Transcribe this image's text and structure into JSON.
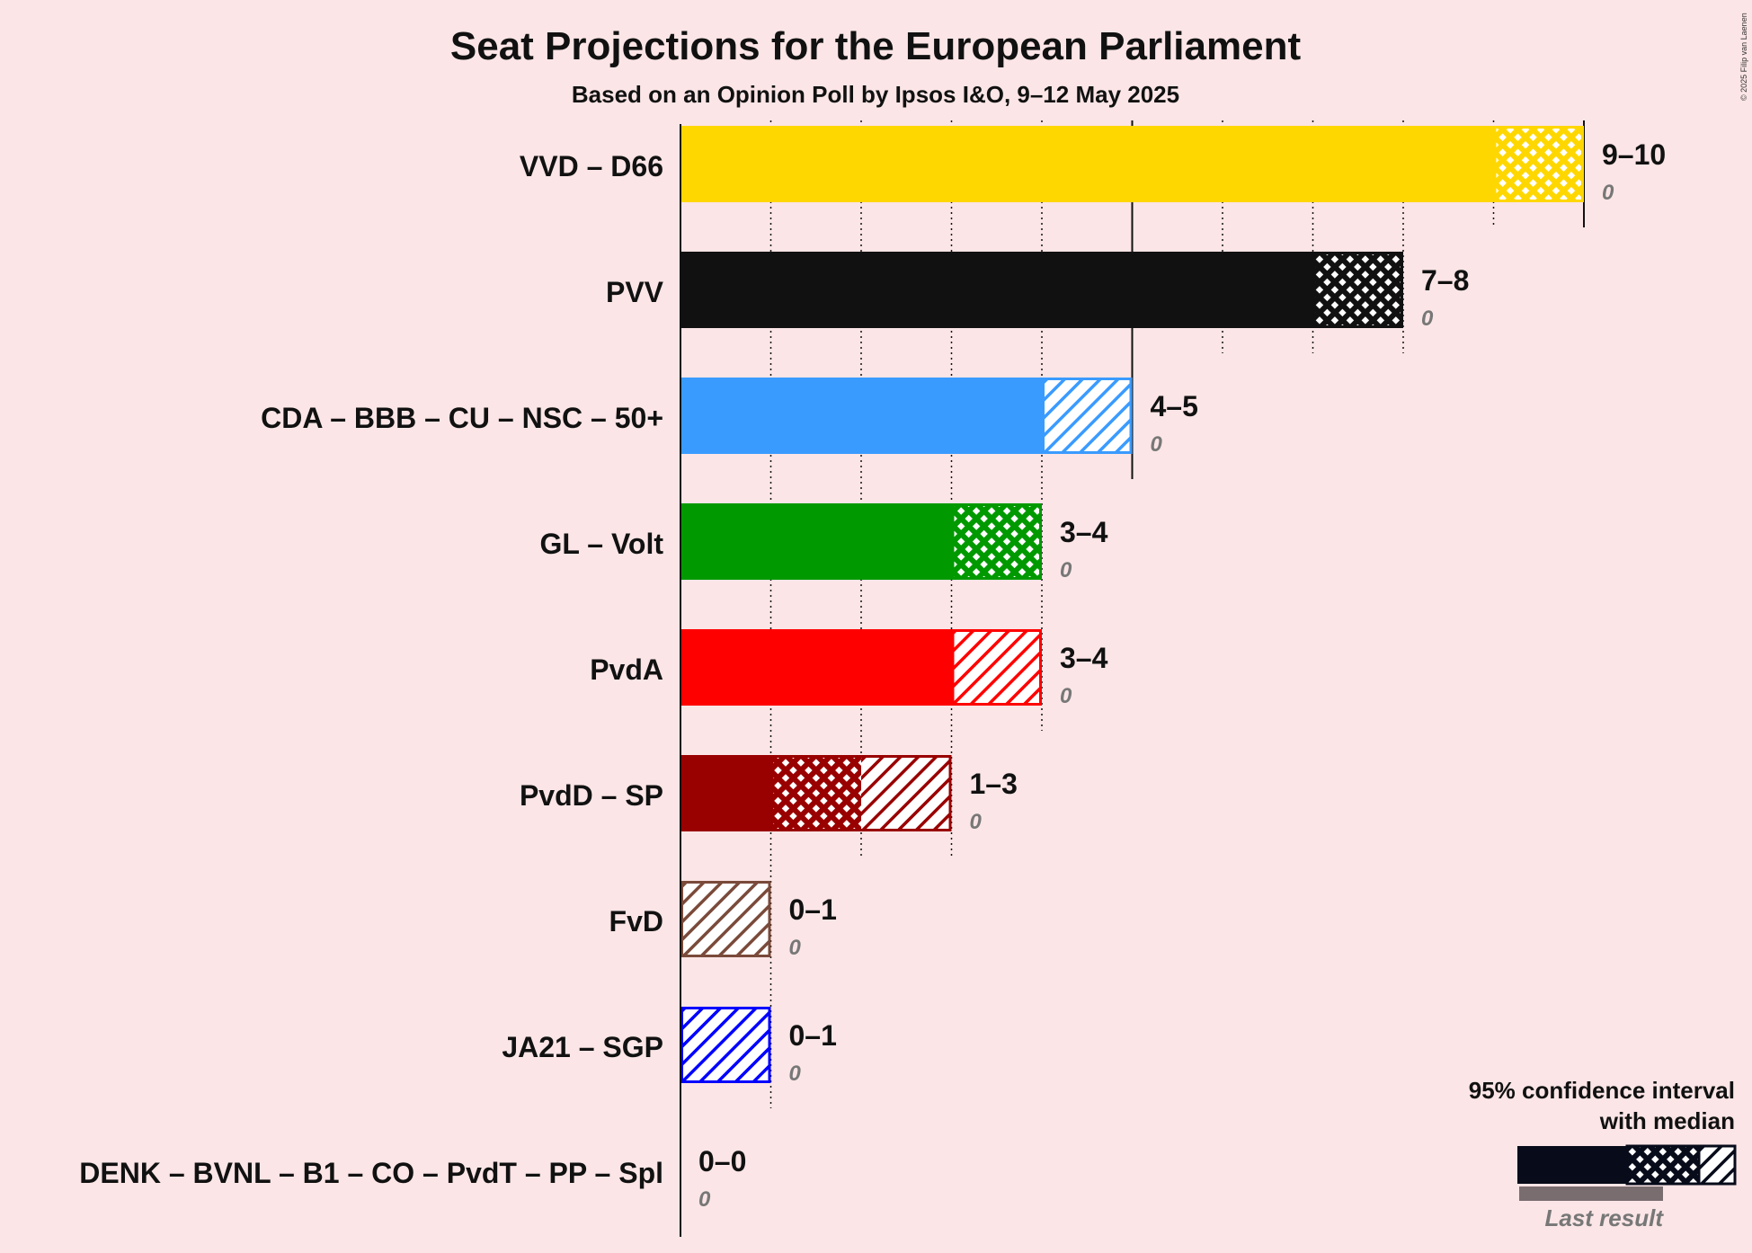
{
  "title": "Seat Projections for the European Parliament",
  "subtitle": "Based on an Opinion Poll by Ipsos I&O, 9–12 May 2025",
  "copyright": "© 2025 Filip van Laenen",
  "legend": {
    "line1": "95% confidence interval",
    "line2": "with median",
    "last_result": "Last result"
  },
  "chart_data": {
    "type": "bar",
    "orientation": "horizontal",
    "x_range": [
      0,
      10
    ],
    "categories": [
      "VVD – D66",
      "PVV",
      "CDA – BBB – CU – NSC – 50+",
      "GL – Volt",
      "PvdA",
      "PvdD – SP",
      "FvD",
      "JA21 – SGP",
      "DENK – BVNL – B1 – CO – PvdT – PP – Spl"
    ],
    "series": [
      {
        "label": "VVD – D66",
        "low": 9,
        "median": 10,
        "high": 10,
        "range_label": "9–10",
        "last_result": "0",
        "color": "#ffd700"
      },
      {
        "label": "PVV",
        "low": 7,
        "median": 8,
        "high": 8,
        "range_label": "7–8",
        "last_result": "0",
        "color": "#111111"
      },
      {
        "label": "CDA – BBB – CU – NSC – 50+",
        "low": 4,
        "median": 4,
        "high": 5,
        "range_label": "4–5",
        "last_result": "0",
        "color": "#3a9bff"
      },
      {
        "label": "GL – Volt",
        "low": 3,
        "median": 4,
        "high": 4,
        "range_label": "3–4",
        "last_result": "0",
        "color": "#009900"
      },
      {
        "label": "PvdA",
        "low": 3,
        "median": 3,
        "high": 4,
        "range_label": "3–4",
        "last_result": "0",
        "color": "#ff0000"
      },
      {
        "label": "PvdD – SP",
        "low": 1,
        "median": 2,
        "high": 3,
        "range_label": "1–3",
        "last_result": "0",
        "color": "#990000"
      },
      {
        "label": "FvD",
        "low": 0,
        "median": 0,
        "high": 1,
        "range_label": "0–1",
        "last_result": "0",
        "color": "#7a4a3a"
      },
      {
        "label": "JA21 – SGP",
        "low": 0,
        "median": 0,
        "high": 1,
        "range_label": "0–1",
        "last_result": "0",
        "color": "#0000ff"
      },
      {
        "label": "DENK – BVNL – B1 – CO – PvdT – PP – Spl",
        "low": 0,
        "median": 0,
        "high": 0,
        "range_label": "0–0",
        "last_result": "0",
        "color": "#888888"
      }
    ]
  }
}
